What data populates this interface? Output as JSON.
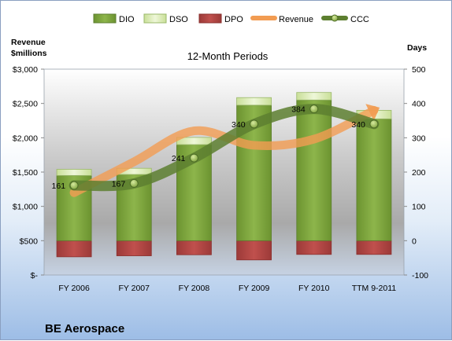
{
  "chart_data": {
    "type": "bar",
    "title": "12-Month Periods",
    "company": "BE Aerospace",
    "categories": [
      "FY 2006",
      "FY 2007",
      "FY 2008",
      "FY 2009",
      "FY 2010",
      "TTM 9-2011"
    ],
    "left_axis": {
      "label_line1": "Revenue",
      "label_line2": "$millions",
      "ylim": [
        0,
        3000
      ],
      "ticks": [
        0,
        500,
        1000,
        1500,
        2000,
        2500,
        3000
      ],
      "tick_labels": [
        "$-",
        "$500",
        "$1,000",
        "$1,500",
        "$2,000",
        "$2,500",
        "$3,000"
      ]
    },
    "right_axis": {
      "label": "Days",
      "ylim": [
        -100,
        500
      ],
      "ticks": [
        -100,
        0,
        100,
        200,
        300,
        400,
        500
      ],
      "tick_labels": [
        "-100",
        "0",
        "100",
        "200",
        "300",
        "400",
        "500"
      ]
    },
    "series": [
      {
        "name": "DIO",
        "axis": "right",
        "kind": "bar",
        "values": [
          190,
          193,
          280,
          395,
          410,
          355
        ],
        "color": "#7da23c"
      },
      {
        "name": "DSO",
        "axis": "right",
        "kind": "bar-stacked",
        "values": [
          18,
          18,
          21,
          22,
          22,
          25
        ],
        "color": "#d8eab0"
      },
      {
        "name": "DPO",
        "axis": "right",
        "kind": "bar-negative",
        "values": [
          -47,
          -44,
          -41,
          -56,
          -40,
          -40
        ],
        "color": "#b24846"
      },
      {
        "name": "Revenue",
        "axis": "left",
        "kind": "line",
        "values": [
          1200,
          1650,
          2100,
          1890,
          1980,
          2400
        ],
        "color": "#f29c52"
      },
      {
        "name": "CCC",
        "axis": "right",
        "kind": "line",
        "values": [
          161,
          167,
          241,
          340,
          384,
          340
        ],
        "color": "#5d7f30"
      }
    ],
    "data_labels": [
      "161",
      "167",
      "241",
      "340",
      "384",
      "340"
    ],
    "legend_position": "top",
    "grid": false
  }
}
